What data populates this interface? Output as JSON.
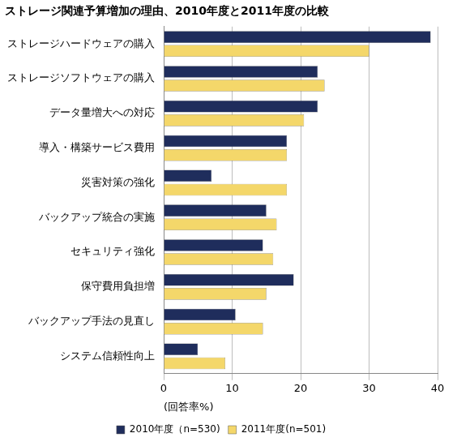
{
  "chart_data": {
    "type": "bar",
    "title": "ストレージ関連予算増加の理由、2010年度と2011年度の比較",
    "x_label": "(回答率%)",
    "orientation": "horizontal",
    "categories": [
      "ストレージハードウェアの購入",
      "ストレージソフトウェアの購入",
      "データ量増大への対応",
      "導入・構築サービス費用",
      "災害対策の強化",
      "バックアップ統合の実施",
      "セキュリティ強化",
      "保守費用負担増",
      "バックアップ手法の見直し",
      "システム信頼性向上"
    ],
    "series": [
      {
        "name": "2010年度（n=530)",
        "color": "#1f2d5c",
        "values": [
          39,
          22.5,
          22.5,
          18,
          7,
          15,
          14.5,
          19,
          10.5,
          5
        ]
      },
      {
        "name": "2011年度(n=501)",
        "color": "#f4d76a",
        "values": [
          30,
          23.5,
          20.5,
          18,
          18,
          16.5,
          16,
          15,
          14.5,
          9
        ]
      }
    ],
    "xlim": [
      0,
      40
    ],
    "xticks": [
      0,
      10,
      20,
      30,
      40
    ],
    "grid": true,
    "legend": "bottom"
  }
}
